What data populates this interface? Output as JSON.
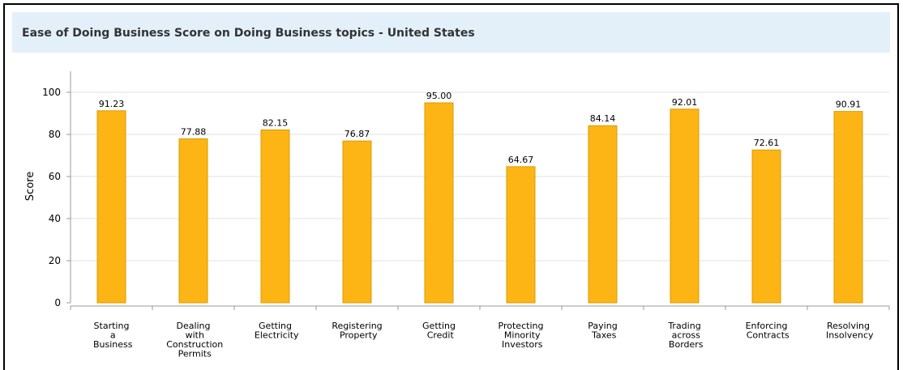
{
  "chart_data": {
    "type": "bar",
    "title": "Ease of Doing Business Score on Doing Business topics - United States",
    "y_label": "Score",
    "categories": [
      "Starting a Business",
      "Dealing with Construction Permits",
      "Getting Electricity",
      "Registering Property",
      "Getting Credit",
      "Protecting Minority Investors",
      "Paying Taxes",
      "Trading across Borders",
      "Enforcing Contracts",
      "Resolving Insolvency"
    ],
    "values": [
      91.23,
      77.88,
      82.15,
      76.87,
      95,
      64.67,
      84.14,
      92.01,
      72.61,
      90.91
    ],
    "value_labels": [
      "91.23",
      "77.88",
      "82.15",
      "76.87",
      "95.00",
      "64.67",
      "84.14",
      "92.01",
      "72.61",
      "90.91"
    ],
    "color": "#fdb515",
    "ylim": [
      0,
      110
    ],
    "yticks": [
      0,
      20,
      40,
      60,
      80,
      100
    ],
    "grid": true
  }
}
